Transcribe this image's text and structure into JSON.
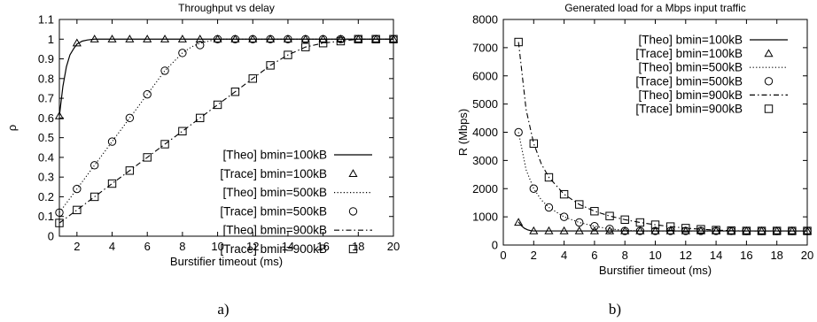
{
  "captions": [
    "a)",
    "b)"
  ],
  "chart_data": [
    {
      "type": "line",
      "title": "Throughput vs delay",
      "xlabel": "Burstifier timeout (ms)",
      "ylabel": "ρ",
      "xlim": [
        1,
        20
      ],
      "ylim": [
        0,
        1.1
      ],
      "xticks": [
        2,
        4,
        6,
        8,
        10,
        12,
        14,
        16,
        18,
        20
      ],
      "yticks": [
        0,
        0.1,
        0.2,
        0.3,
        0.4,
        0.5,
        0.6,
        0.7,
        0.8,
        0.9,
        1,
        1.1
      ],
      "legend_position": "bottom-right",
      "grid": false,
      "series": [
        {
          "name": "[Theo] bmin=100kB",
          "style": "solid",
          "kind": "line",
          "x": [
            1,
            1.2,
            1.4,
            1.6,
            1.8,
            2,
            2.3,
            2.6,
            3,
            4,
            6,
            10,
            20
          ],
          "y": [
            0.61,
            0.76,
            0.86,
            0.92,
            0.95,
            0.975,
            0.99,
            0.996,
            1,
            1,
            1,
            1,
            1
          ]
        },
        {
          "name": "[Trace] bmin=100kB",
          "marker": "triangle",
          "kind": "points",
          "x": [
            1,
            2,
            3,
            4,
            5,
            6,
            7,
            8,
            9,
            10,
            11,
            12,
            13,
            14,
            15,
            16,
            17,
            18,
            19,
            20
          ],
          "y": [
            0.61,
            0.98,
            1,
            1,
            1,
            1,
            1,
            1,
            1,
            1,
            1,
            1,
            1,
            1,
            1,
            1,
            1,
            1,
            1,
            1
          ]
        },
        {
          "name": "[Theo] bmin=500kB",
          "style": "dotted",
          "kind": "line",
          "x": [
            1,
            2,
            3,
            4,
            5,
            6,
            7,
            8,
            8.5,
            9,
            9.5,
            10,
            11,
            12,
            20
          ],
          "y": [
            0.12,
            0.24,
            0.36,
            0.48,
            0.6,
            0.72,
            0.84,
            0.93,
            0.96,
            0.98,
            0.99,
            1,
            1,
            1,
            1
          ]
        },
        {
          "name": "[Trace] bmin=500kB",
          "marker": "circle",
          "kind": "points",
          "x": [
            1,
            2,
            3,
            4,
            5,
            6,
            7,
            8,
            9,
            10,
            11,
            12,
            13,
            14,
            15,
            16,
            17,
            18,
            19,
            20
          ],
          "y": [
            0.12,
            0.24,
            0.36,
            0.48,
            0.6,
            0.72,
            0.84,
            0.93,
            0.97,
            1,
            1,
            1,
            1,
            1,
            1,
            1,
            1,
            1,
            1,
            1
          ]
        },
        {
          "name": "[Theo] bmin=900kB",
          "style": "dashdot",
          "kind": "line",
          "x": [
            1,
            2,
            3,
            4,
            5,
            6,
            7,
            8,
            9,
            10,
            11,
            12,
            13,
            14,
            15,
            16,
            17,
            18,
            19,
            20
          ],
          "y": [
            0.067,
            0.133,
            0.2,
            0.267,
            0.333,
            0.4,
            0.467,
            0.533,
            0.6,
            0.667,
            0.733,
            0.8,
            0.867,
            0.92,
            0.96,
            0.98,
            0.99,
            1,
            1,
            1
          ]
        },
        {
          "name": "[Trace] bmin=900kB",
          "marker": "square",
          "kind": "points",
          "x": [
            1,
            2,
            3,
            4,
            5,
            6,
            7,
            8,
            9,
            10,
            11,
            12,
            13,
            14,
            15,
            16,
            17,
            18,
            19,
            20
          ],
          "y": [
            0.067,
            0.133,
            0.2,
            0.267,
            0.333,
            0.4,
            0.467,
            0.533,
            0.6,
            0.667,
            0.733,
            0.8,
            0.867,
            0.92,
            0.96,
            0.98,
            0.99,
            1,
            1,
            1
          ]
        }
      ]
    },
    {
      "type": "line",
      "title": "Generated load for a Mbps input traffic",
      "xlabel": "Burstifier timeout (ms)",
      "ylabel": "R (Mbps)",
      "xlim": [
        0,
        20
      ],
      "ylim": [
        0,
        8000
      ],
      "xticks": [
        0,
        2,
        4,
        6,
        8,
        10,
        12,
        14,
        16,
        18,
        20
      ],
      "yticks": [
        0,
        1000,
        2000,
        3000,
        4000,
        5000,
        6000,
        7000,
        8000
      ],
      "legend_position": "top-right",
      "grid": false,
      "series": [
        {
          "name": "[Theo] bmin=100kB",
          "style": "solid",
          "kind": "line",
          "x": [
            1,
            1.2,
            1.4,
            1.6,
            1.8,
            2,
            3,
            4,
            6,
            10,
            20
          ],
          "y": [
            820,
            680,
            590,
            540,
            510,
            500,
            500,
            500,
            500,
            500,
            500
          ]
        },
        {
          "name": "[Trace] bmin=100kB",
          "marker": "triangle",
          "kind": "points",
          "x": [
            1,
            2,
            3,
            4,
            5,
            6,
            7,
            8,
            9,
            10,
            11,
            12,
            13,
            14,
            15,
            16,
            17,
            18,
            19,
            20
          ],
          "y": [
            800,
            500,
            500,
            500,
            500,
            500,
            500,
            500,
            500,
            500,
            500,
            500,
            500,
            500,
            500,
            500,
            500,
            500,
            500,
            500
          ]
        },
        {
          "name": "[Theo] bmin=500kB",
          "style": "dotted",
          "kind": "line",
          "x": [
            1,
            1.5,
            2,
            2.5,
            3,
            4,
            5,
            6,
            7,
            8,
            9,
            10,
            12,
            14,
            20
          ],
          "y": [
            4000,
            2667,
            2000,
            1600,
            1333,
            1000,
            800,
            667,
            571,
            520,
            500,
            500,
            500,
            500,
            500
          ]
        },
        {
          "name": "[Trace] bmin=500kB",
          "marker": "circle",
          "kind": "points",
          "x": [
            1,
            2,
            3,
            4,
            5,
            6,
            7,
            8,
            9,
            10,
            11,
            12,
            13,
            14,
            15,
            16,
            17,
            18,
            19,
            20
          ],
          "y": [
            4000,
            2000,
            1333,
            1000,
            800,
            667,
            571,
            500,
            500,
            500,
            500,
            500,
            500,
            500,
            500,
            500,
            500,
            500,
            500,
            500
          ]
        },
        {
          "name": "[Theo] bmin=900kB",
          "style": "dashdot",
          "kind": "line",
          "x": [
            1,
            1.5,
            2,
            2.5,
            3,
            4,
            5,
            6,
            7,
            8,
            9,
            10,
            11,
            12,
            13,
            14,
            15,
            16,
            17,
            18,
            19,
            20
          ],
          "y": [
            7200,
            4800,
            3600,
            2880,
            2400,
            1800,
            1440,
            1200,
            1029,
            900,
            800,
            720,
            655,
            600,
            560,
            530,
            510,
            500,
            500,
            500,
            500,
            500
          ]
        },
        {
          "name": "[Trace] bmin=900kB",
          "marker": "square",
          "kind": "points",
          "x": [
            1,
            2,
            3,
            4,
            5,
            6,
            7,
            8,
            9,
            10,
            11,
            12,
            13,
            14,
            15,
            16,
            17,
            18,
            19,
            20
          ],
          "y": [
            7200,
            3600,
            2400,
            1800,
            1440,
            1200,
            1029,
            900,
            800,
            720,
            655,
            600,
            560,
            530,
            510,
            500,
            500,
            500,
            500,
            500
          ]
        }
      ]
    }
  ]
}
